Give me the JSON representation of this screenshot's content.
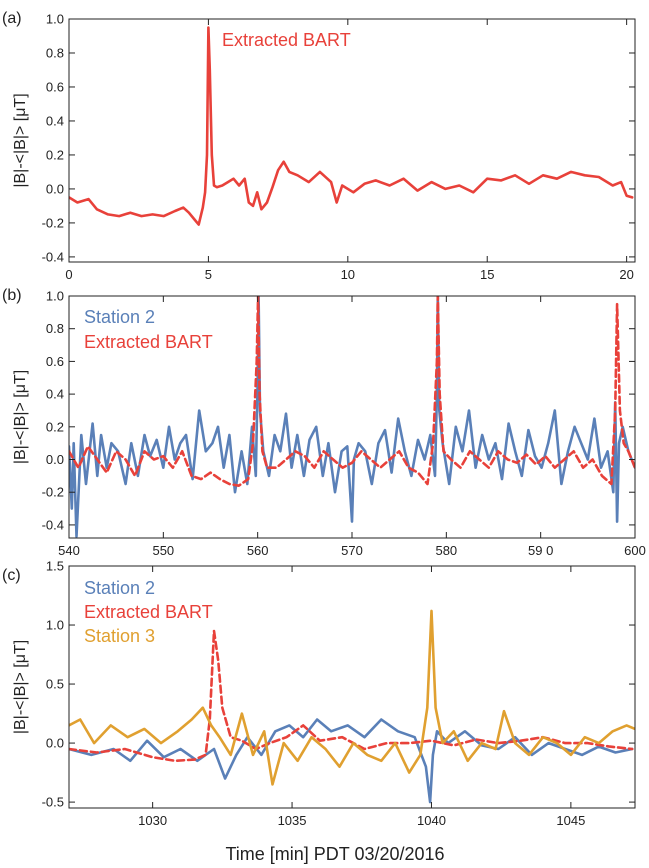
{
  "xlabel_global": "Time [min] PDT 03/20/2016",
  "colors": {
    "red": "#e8413a",
    "blue": "#5a80b8",
    "orange": "#e0a030",
    "axis": "#222222"
  },
  "chart_data": [
    {
      "panel_label": "(a)",
      "type": "line",
      "ylabel": "|B|-<|B|> [μT]",
      "xlim": [
        0,
        20.3
      ],
      "ylim": [
        -0.43,
        1.0
      ],
      "xticks": [
        0,
        5,
        10,
        15,
        20
      ],
      "xtick_labels": [
        "0",
        "5",
        "10",
        "15",
        "20"
      ],
      "yticks": [
        -0.4,
        -0.2,
        0.0,
        0.2,
        0.4,
        0.6,
        0.8,
        1.0
      ],
      "ytick_labels": [
        "-0.4",
        "-0.2",
        "0.0",
        "0.2",
        "0.4",
        "0.6",
        "0.8",
        "1.0"
      ],
      "series": [
        {
          "name": "Extracted BART",
          "color": "#e8413a",
          "dash": false,
          "x": [
            0,
            0.3,
            0.7,
            1.0,
            1.4,
            1.8,
            2.2,
            2.6,
            3.0,
            3.4,
            3.8,
            4.1,
            4.3,
            4.5,
            4.65,
            4.8,
            4.88,
            4.95,
            5.0,
            5.05,
            5.12,
            5.2,
            5.3,
            5.5,
            5.7,
            5.9,
            6.1,
            6.3,
            6.45,
            6.6,
            6.75,
            6.9,
            7.1,
            7.3,
            7.5,
            7.7,
            7.9,
            8.2,
            8.6,
            9.0,
            9.4,
            9.6,
            9.8,
            10.2,
            10.6,
            11.0,
            11.5,
            12.0,
            12.5,
            13.0,
            13.5,
            14.0,
            14.5,
            15.0,
            15.5,
            16.0,
            16.5,
            17.0,
            17.5,
            18.0,
            18.5,
            19.0,
            19.5,
            19.8,
            20.0,
            20.2
          ],
          "y": [
            -0.05,
            -0.08,
            -0.06,
            -0.12,
            -0.15,
            -0.16,
            -0.14,
            -0.16,
            -0.15,
            -0.16,
            -0.13,
            -0.11,
            -0.14,
            -0.18,
            -0.21,
            -0.11,
            -0.02,
            0.2,
            0.95,
            0.7,
            0.2,
            0.02,
            0.01,
            0.02,
            0.04,
            0.06,
            0.02,
            0.06,
            -0.08,
            -0.1,
            -0.02,
            -0.12,
            -0.08,
            0.01,
            0.11,
            0.16,
            0.1,
            0.08,
            0.04,
            0.1,
            0.04,
            -0.08,
            0.02,
            -0.02,
            0.03,
            0.05,
            0.02,
            0.06,
            -0.01,
            0.04,
            0.0,
            0.02,
            -0.02,
            0.06,
            0.05,
            0.08,
            0.03,
            0.08,
            0.06,
            0.1,
            0.08,
            0.07,
            0.02,
            0.04,
            -0.04,
            -0.05
          ]
        }
      ],
      "legend": [
        {
          "text": "Extracted BART",
          "color": "#e8413a"
        }
      ]
    },
    {
      "panel_label": "(b)",
      "type": "line",
      "ylabel": "|B|-<|B|> [μT]",
      "xlim": [
        540,
        600
      ],
      "ylim": [
        -0.48,
        1.0
      ],
      "xticks": [
        540,
        550,
        560,
        570,
        580,
        590,
        600
      ],
      "xtick_labels": [
        "540",
        "550",
        "560",
        "570",
        "580",
        "59 0",
        "600"
      ],
      "yticks": [
        -0.4,
        -0.2,
        0.0,
        0.2,
        0.4,
        0.6,
        0.8,
        1.0
      ],
      "ytick_labels": [
        "-0.4",
        "-0.2",
        "0.0",
        "0.2",
        "0.4",
        "0.6",
        "0.8",
        "1.0"
      ],
      "series": [
        {
          "name": "Station 2",
          "color": "#5a80b8",
          "dash": false,
          "x": [
            540,
            540.3,
            540.5,
            540.8,
            541.3,
            541.8,
            542.5,
            543,
            543.4,
            544,
            544.5,
            545.2,
            546,
            546.6,
            547.3,
            548,
            548.6,
            549.3,
            550,
            550.6,
            551.2,
            551.8,
            552.4,
            553.1,
            553.8,
            554.5,
            555.2,
            555.8,
            556.4,
            557,
            557.6,
            558.3,
            558.9,
            559.4,
            559.8,
            560,
            560.1,
            560.25,
            560.6,
            561.2,
            561.8,
            562.4,
            563,
            563.6,
            564.2,
            564.9,
            565.5,
            566.2,
            566.9,
            567.5,
            568.2,
            568.9,
            569.5,
            570,
            570.2,
            570.7,
            571.4,
            572.1,
            572.8,
            573.5,
            574.2,
            574.9,
            575.6,
            576.3,
            577,
            577.7,
            578.3,
            578.8,
            579,
            579.1,
            579.25,
            579.6,
            580.3,
            581,
            581.7,
            582.4,
            583.1,
            583.8,
            584.5,
            585.2,
            585.9,
            586.6,
            587.3,
            588,
            588.7,
            589.4,
            590.1,
            590.8,
            591.5,
            592.2,
            592.9,
            593.6,
            594.3,
            595,
            595.7,
            596.4,
            597.1,
            597.7,
            597.9,
            598.1,
            598.3,
            598.7,
            599.3,
            600
          ],
          "y": [
            0.08,
            -0.3,
            0.1,
            -0.47,
            0.15,
            -0.15,
            0.22,
            -0.1,
            0.15,
            -0.05,
            0.1,
            0.05,
            -0.15,
            0.1,
            -0.1,
            0.15,
            0.02,
            0.12,
            -0.05,
            0.2,
            0.0,
            0.1,
            0.15,
            -0.12,
            0.3,
            0.05,
            0.1,
            0.2,
            -0.05,
            0.15,
            -0.2,
            0.05,
            -0.15,
            0.2,
            -0.1,
            0.5,
            1.0,
            0.3,
            0.05,
            -0.1,
            0.15,
            0.05,
            0.28,
            -0.05,
            0.15,
            -0.1,
            0.12,
            0.2,
            -0.1,
            0.1,
            -0.2,
            0.05,
            0.08,
            -0.38,
            0.0,
            0.1,
            0.05,
            -0.15,
            0.1,
            0.18,
            -0.08,
            0.25,
            0.05,
            -0.1,
            0.12,
            0.0,
            0.15,
            -0.1,
            0.4,
            1.0,
            0.3,
            0.1,
            -0.15,
            0.2,
            0.05,
            0.3,
            -0.05,
            0.15,
            0.0,
            0.1,
            -0.12,
            0.22,
            0.05,
            -0.1,
            0.18,
            0.02,
            -0.05,
            0.1,
            0.3,
            -0.15,
            0.05,
            0.2,
            0.1,
            0.0,
            0.25,
            -0.05,
            0.05,
            -0.2,
            0.35,
            -0.38,
            0.1,
            0.2,
            0.05,
            -0.05
          ]
        },
        {
          "name": "Extracted BART",
          "color": "#e8413a",
          "dash": true,
          "x": [
            540,
            541,
            542,
            543,
            544,
            545,
            546,
            547,
            548,
            549,
            550,
            551,
            552,
            553,
            554,
            555,
            556,
            557,
            558,
            559,
            559.5,
            559.9,
            560.05,
            560.2,
            560.5,
            561,
            562,
            563,
            564,
            565,
            566,
            567,
            568,
            569,
            570,
            571,
            572,
            573,
            574,
            575,
            576,
            577,
            578,
            578.6,
            579,
            579.1,
            579.3,
            579.7,
            580.5,
            581.5,
            582.5,
            583.5,
            584.5,
            585.5,
            586.5,
            587.5,
            588.5,
            589.5,
            590.5,
            591.5,
            592.5,
            593.5,
            594.5,
            595.5,
            596.5,
            597.5,
            597.9,
            598.1,
            598.4,
            598.8,
            599.3,
            600
          ],
          "y": [
            0.05,
            -0.05,
            0.08,
            0.0,
            -0.08,
            0.05,
            0.0,
            -0.1,
            0.05,
            0.0,
            0.02,
            -0.05,
            0.05,
            -0.1,
            -0.12,
            -0.08,
            -0.12,
            -0.15,
            -0.16,
            -0.12,
            0.1,
            0.6,
            1.0,
            0.4,
            0.05,
            -0.05,
            -0.05,
            0.0,
            0.05,
            0.02,
            -0.05,
            0.05,
            0.0,
            -0.05,
            -0.02,
            0.05,
            0.0,
            -0.05,
            0.0,
            0.05,
            -0.05,
            -0.08,
            -0.15,
            0.1,
            0.6,
            1.0,
            0.4,
            0.05,
            0.0,
            -0.05,
            0.05,
            0.0,
            -0.05,
            0.05,
            0.0,
            -0.02,
            0.03,
            -0.03,
            0.02,
            -0.05,
            0.0,
            0.05,
            -0.05,
            0.0,
            -0.1,
            -0.15,
            0.3,
            0.95,
            0.3,
            0.1,
            0.05,
            -0.05
          ]
        }
      ],
      "legend": [
        {
          "text": "Station 2",
          "color": "#5a80b8"
        },
        {
          "text": "Extracted BART",
          "color": "#e8413a"
        }
      ]
    },
    {
      "panel_label": "(c)",
      "type": "line",
      "ylabel": "|B|-<|B|> [μT]",
      "xlim": [
        1027,
        1047.3
      ],
      "ylim": [
        -0.55,
        1.5
      ],
      "xticks": [
        1030,
        1035,
        1040,
        1045
      ],
      "xtick_labels": [
        "1030",
        "1035",
        "1040",
        "1045"
      ],
      "yticks": [
        -0.5,
        0.0,
        0.5,
        1.0,
        1.5
      ],
      "ytick_labels": [
        "-0.5",
        "0.0",
        "0.5",
        "1.0",
        "1.5"
      ],
      "series": [
        {
          "name": "Station 2",
          "color": "#5a80b8",
          "dash": false,
          "x": [
            1027,
            1027.8,
            1028.6,
            1029.2,
            1029.8,
            1030.4,
            1031,
            1031.6,
            1032.2,
            1032.6,
            1033,
            1033.4,
            1033.9,
            1034.4,
            1034.9,
            1035.4,
            1035.9,
            1036.4,
            1037,
            1037.6,
            1038.2,
            1038.8,
            1039.4,
            1039.8,
            1039.95,
            1040.05,
            1040.2,
            1040.6,
            1041.2,
            1041.8,
            1042.4,
            1043,
            1043.6,
            1044.2,
            1044.8,
            1045.4,
            1046,
            1046.6,
            1047.2
          ],
          "y": [
            -0.05,
            -0.1,
            -0.05,
            -0.15,
            0.02,
            -0.12,
            -0.05,
            -0.15,
            -0.05,
            -0.3,
            -0.1,
            0.05,
            -0.1,
            0.1,
            0.15,
            0.05,
            0.2,
            0.1,
            0.15,
            0.05,
            0.2,
            0.1,
            0.05,
            -0.2,
            -0.5,
            -0.1,
            0.1,
            0.0,
            0.1,
            -0.02,
            -0.05,
            0.05,
            -0.1,
            0.0,
            -0.05,
            -0.1,
            -0.03,
            -0.08,
            -0.05
          ]
        },
        {
          "name": "Extracted BART",
          "color": "#e8413a",
          "dash": true,
          "x": [
            1027,
            1028,
            1029,
            1030,
            1030.8,
            1031.5,
            1031.9,
            1032.05,
            1032.2,
            1032.35,
            1032.5,
            1032.8,
            1033.2,
            1033.7,
            1034.2,
            1034.8,
            1035.4,
            1036,
            1036.8,
            1037.6,
            1038.4,
            1039.2,
            1040,
            1040.8,
            1041.6,
            1042.4,
            1043.2,
            1044,
            1044.8,
            1045.6,
            1046.4,
            1047.2
          ],
          "y": [
            -0.05,
            -0.08,
            -0.05,
            -0.12,
            -0.15,
            -0.14,
            -0.1,
            0.2,
            0.95,
            0.7,
            0.3,
            0.05,
            0.02,
            -0.05,
            0.0,
            0.05,
            0.15,
            0.02,
            0.05,
            -0.05,
            0.0,
            0.0,
            0.02,
            -0.02,
            0.03,
            0.0,
            0.02,
            0.05,
            0.0,
            0.0,
            -0.03,
            -0.05
          ]
        },
        {
          "name": "Station 3",
          "color": "#e0a030",
          "dash": false,
          "x": [
            1027,
            1027.4,
            1027.9,
            1028.5,
            1029.1,
            1029.7,
            1030.3,
            1030.9,
            1031.4,
            1031.8,
            1032.1,
            1032.4,
            1032.8,
            1033.2,
            1033.6,
            1034,
            1034.3,
            1034.7,
            1035.2,
            1035.7,
            1036.2,
            1036.7,
            1037.2,
            1037.7,
            1038.2,
            1038.7,
            1039.2,
            1039.6,
            1039.85,
            1040,
            1040.15,
            1040.4,
            1040.8,
            1041.3,
            1041.8,
            1042.3,
            1042.6,
            1043,
            1043.5,
            1044,
            1044.5,
            1045,
            1045.5,
            1046,
            1046.5,
            1047,
            1047.3
          ],
          "y": [
            0.15,
            0.2,
            0.0,
            0.15,
            0.05,
            0.12,
            0.0,
            0.1,
            0.2,
            0.3,
            0.15,
            0.05,
            -0.1,
            0.25,
            -0.1,
            0.1,
            -0.35,
            0.0,
            -0.15,
            0.05,
            -0.05,
            -0.2,
            0.0,
            -0.1,
            -0.15,
            0.0,
            -0.25,
            -0.1,
            0.3,
            1.12,
            0.3,
            0.0,
            0.1,
            -0.15,
            0.0,
            -0.05,
            0.27,
            0.0,
            -0.1,
            0.05,
            0.0,
            -0.1,
            0.05,
            0.0,
            0.1,
            0.15,
            0.12
          ]
        }
      ],
      "legend": [
        {
          "text": "Station 2",
          "color": "#5a80b8"
        },
        {
          "text": "Extracted BART",
          "color": "#e8413a"
        },
        {
          "text": "Station 3",
          "color": "#e0a030"
        }
      ]
    }
  ]
}
